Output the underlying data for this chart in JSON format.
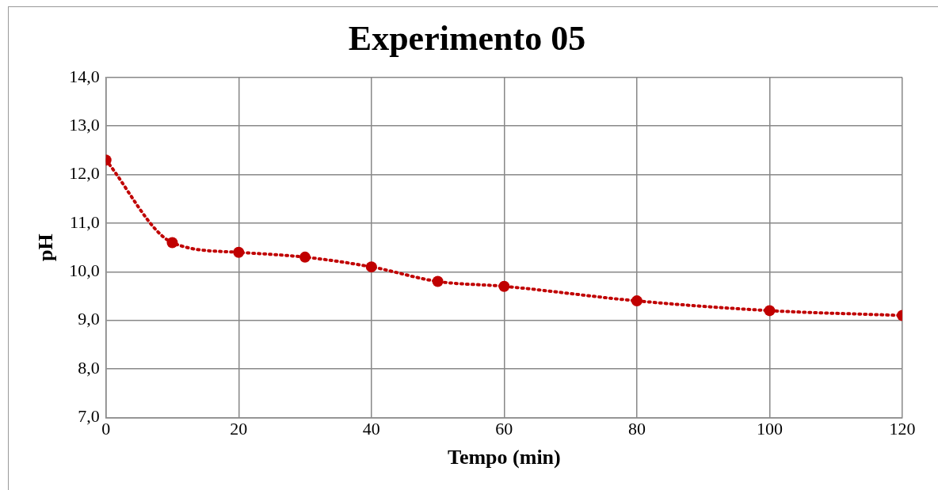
{
  "chart_data": {
    "type": "line",
    "title": "Experimento 05",
    "xlabel": "Tempo (min)",
    "ylabel": "pH",
    "x": [
      0,
      10,
      20,
      30,
      40,
      50,
      60,
      80,
      100,
      120
    ],
    "series": [
      {
        "color": "#c00000",
        "values": [
          12.3,
          10.6,
          10.4,
          10.3,
          10.1,
          9.8,
          9.7,
          9.4,
          9.2,
          9.1
        ]
      }
    ],
    "xlim": [
      0,
      120
    ],
    "xticks": [
      0,
      20,
      40,
      60,
      80,
      100,
      120
    ],
    "ylim": [
      7,
      14
    ],
    "yticks": [
      {
        "value": 7,
        "label": "7,0"
      },
      {
        "value": 8,
        "label": "8,0"
      },
      {
        "value": 9,
        "label": "9,0"
      },
      {
        "value": 10,
        "label": "10,0"
      },
      {
        "value": 11,
        "label": "11,0"
      },
      {
        "value": 12,
        "label": "12,0"
      },
      {
        "value": 13,
        "label": "13,0"
      },
      {
        "value": 14,
        "label": "14,0"
      }
    ],
    "grid": true,
    "legend": false,
    "marker": "circle",
    "line_style": "dotted"
  }
}
